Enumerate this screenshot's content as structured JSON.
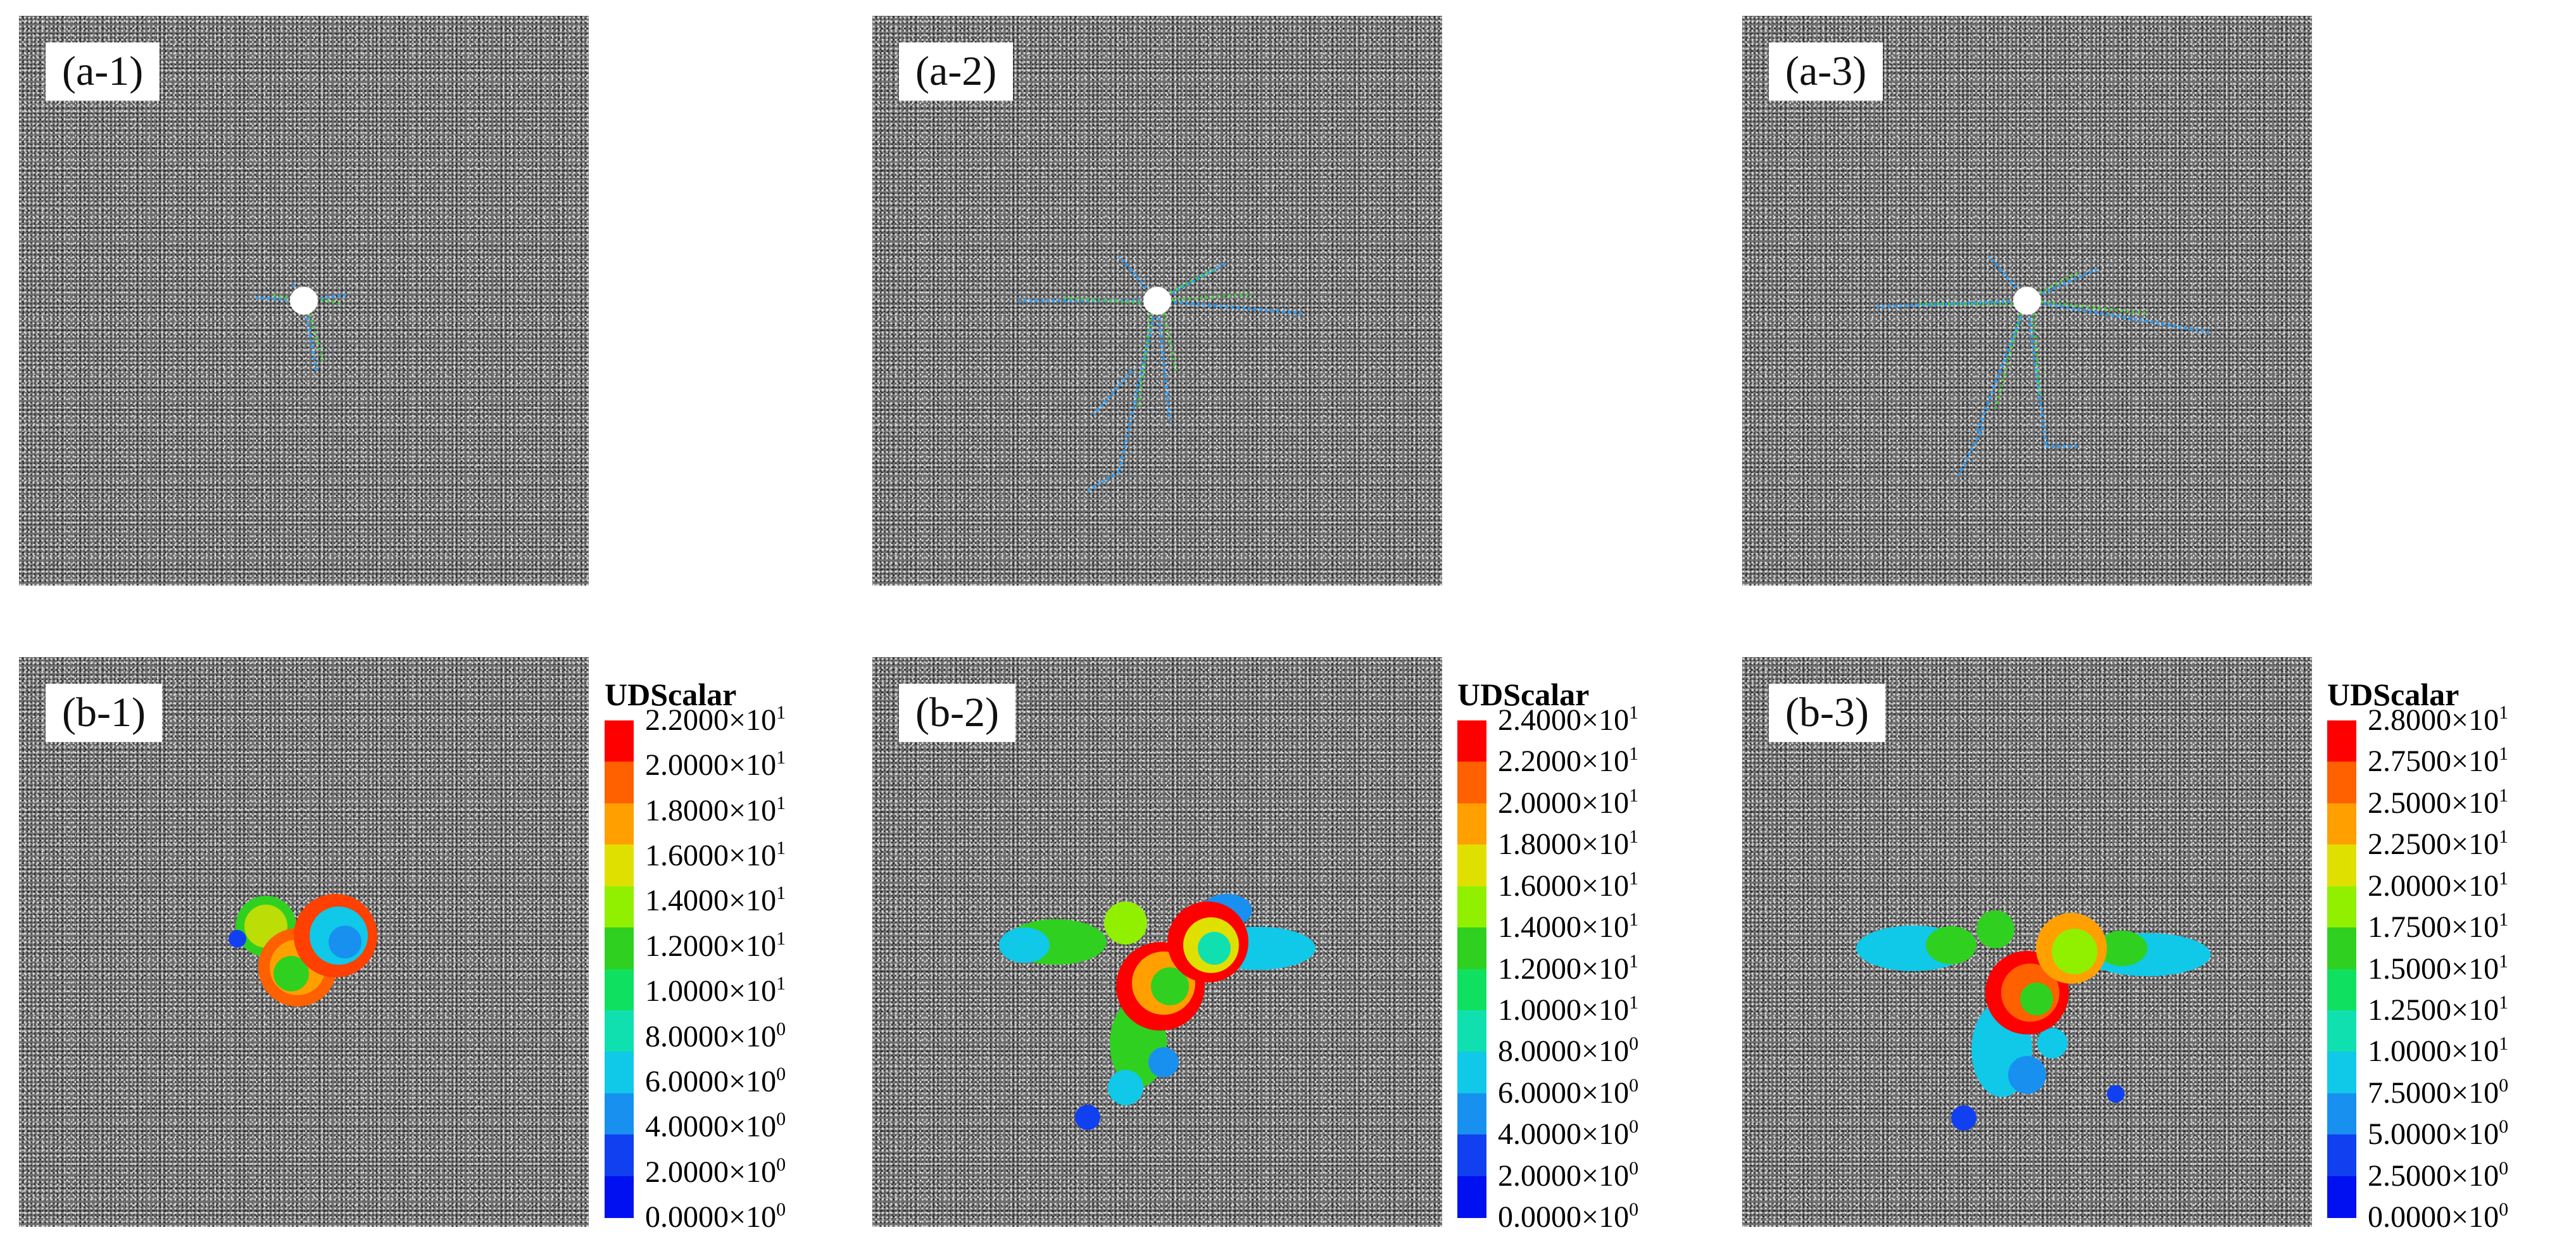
{
  "top_row": [
    {
      "label": "(a-1)"
    },
    {
      "label": "(a-2)"
    },
    {
      "label": "(a-3)"
    }
  ],
  "bottom_row": [
    {
      "label": "(b-1)"
    },
    {
      "label": "(b-2)"
    },
    {
      "label": "(b-3)"
    }
  ],
  "colorbars": [
    {
      "title": "UDScalar",
      "ticks": [
        "2.2000×10",
        "2.0000×10",
        "1.8000×10",
        "1.6000×10",
        "1.4000×10",
        "1.2000×10",
        "1.0000×10",
        "8.0000×10",
        "6.0000×10",
        "4.0000×10",
        "2.0000×10",
        "0.0000×10"
      ],
      "exponents": [
        "1",
        "1",
        "1",
        "1",
        "1",
        "1",
        "1",
        "0",
        "0",
        "0",
        "0",
        "0"
      ],
      "colors": [
        "#ff0000",
        "#ff6000",
        "#ffa000",
        "#e0e000",
        "#90f000",
        "#30d020",
        "#10e060",
        "#10e0b0",
        "#10c8e8",
        "#1890f0",
        "#1040f0",
        "#0010f0"
      ]
    },
    {
      "title": "UDScalar",
      "ticks": [
        "2.4000×10",
        "2.2000×10",
        "2.0000×10",
        "1.8000×10",
        "1.6000×10",
        "1.4000×10",
        "1.2000×10",
        "1.0000×10",
        "8.0000×10",
        "6.0000×10",
        "4.0000×10",
        "2.0000×10",
        "0.0000×10"
      ],
      "exponents": [
        "1",
        "1",
        "1",
        "1",
        "1",
        "1",
        "1",
        "1",
        "0",
        "0",
        "0",
        "0",
        "0"
      ],
      "colors": [
        "#ff0000",
        "#ff6000",
        "#ffa000",
        "#e0e000",
        "#90f000",
        "#30d020",
        "#10e060",
        "#10e0b0",
        "#10c8e8",
        "#1890f0",
        "#1040f0",
        "#0010f0"
      ]
    },
    {
      "title": "UDScalar",
      "ticks": [
        "2.8000×10",
        "2.7500×10",
        "2.5000×10",
        "2.2500×10",
        "2.0000×10",
        "1.7500×10",
        "1.5000×10",
        "1.2500×10",
        "1.0000×10",
        "7.5000×10",
        "5.0000×10",
        "2.5000×10",
        "0.0000×10"
      ],
      "exponents": [
        "1",
        "1",
        "1",
        "1",
        "1",
        "1",
        "1",
        "1",
        "1",
        "0",
        "0",
        "0",
        "0"
      ],
      "colors": [
        "#ff0000",
        "#ff6000",
        "#ffa000",
        "#e0e000",
        "#90f000",
        "#30d020",
        "#10e060",
        "#10e0b0",
        "#10c8e8",
        "#1890f0",
        "#1040f0",
        "#0010f0"
      ]
    }
  ]
}
